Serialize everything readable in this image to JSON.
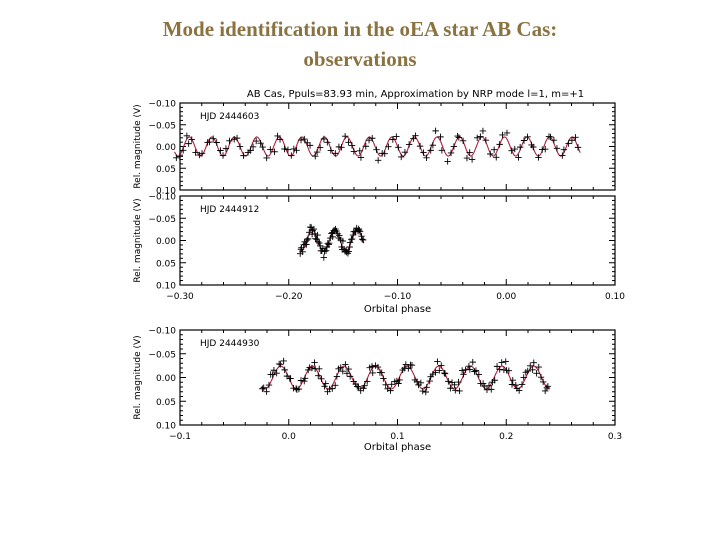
{
  "slide": {
    "title_line1": "Mode identification in the oEA star AB Cas:",
    "title_line2": "observations"
  },
  "colors": {
    "text": "#8a7340",
    "fit": "#b02040",
    "points": "#000000"
  },
  "chart_data": [
    {
      "type": "scatter",
      "id": "panel1",
      "title": "AB Cas, Ppuls=83.93 min, Approximation by NRP mode l=1, m=+1",
      "annotation": "HJD 2444603",
      "ylabel": "Rel. magnitude (V)",
      "xlabel": "",
      "xlim": [
        -0.3,
        0.1
      ],
      "ylim": [
        0.1,
        -0.1
      ],
      "y_inverted": true,
      "yticks": [
        -0.1,
        -0.05,
        0.0,
        0.05,
        0.1
      ],
      "ytick_labels": [
        "−0.10",
        "−0.05",
        "0.00",
        "0.05",
        "0.10"
      ],
      "xticks": [],
      "data_x_range": [
        -0.305,
        0.068
      ],
      "fit": {
        "amplitude": 0.022,
        "cycles_per_phase": 48.3,
        "phase_offset": 0.6
      },
      "observations": {
        "scatter": 0.015,
        "count": 120
      }
    },
    {
      "type": "scatter",
      "id": "panel2",
      "title": "",
      "annotation": "HJD 2444912",
      "ylabel": "Rel. magnitude (V)",
      "xlabel": "Orbital phase",
      "xlim": [
        -0.3,
        0.1
      ],
      "ylim": [
        0.1,
        -0.1
      ],
      "y_inverted": true,
      "yticks": [
        -0.1,
        -0.05,
        0.0,
        0.05,
        0.1
      ],
      "ytick_labels": [
        "−0.10",
        "−0.05",
        "0.00",
        "0.05",
        "0.10"
      ],
      "xticks": [
        -0.3,
        -0.2,
        -0.1,
        0.0,
        0.1
      ],
      "xtick_labels": [
        "−0.30",
        "−0.20",
        "−0.10",
        "0.00",
        "0.10"
      ],
      "data_x_range": [
        -0.19,
        -0.131
      ],
      "fit": {
        "amplitude": 0.024,
        "cycles_per_phase": 48.3,
        "phase_offset": 1.2
      },
      "observations": {
        "scatter": 0.012,
        "count": 70
      }
    },
    {
      "type": "scatter",
      "id": "panel3",
      "title": "",
      "annotation": "HJD 2444930",
      "ylabel": "Rel. magnitude (V)",
      "xlabel": "Orbital phase",
      "xlim": [
        -0.1,
        0.3
      ],
      "ylim": [
        0.1,
        -0.1
      ],
      "y_inverted": true,
      "yticks": [
        -0.1,
        -0.05,
        0.0,
        0.05,
        0.1
      ],
      "ytick_labels": [
        "−0.10",
        "−0.05",
        "0.00",
        "0.05",
        "0.10"
      ],
      "xticks": [
        -0.1,
        0.0,
        0.1,
        0.2,
        0.3
      ],
      "xtick_labels": [
        "−0.1",
        "0.0",
        "0.1",
        "0.2",
        "0.3"
      ],
      "data_x_range": [
        -0.025,
        0.24
      ],
      "fit": {
        "amplitude": 0.024,
        "cycles_per_phase": 34.4,
        "phase_offset": 0.9
      },
      "observations": {
        "scatter": 0.013,
        "count": 140
      }
    }
  ]
}
